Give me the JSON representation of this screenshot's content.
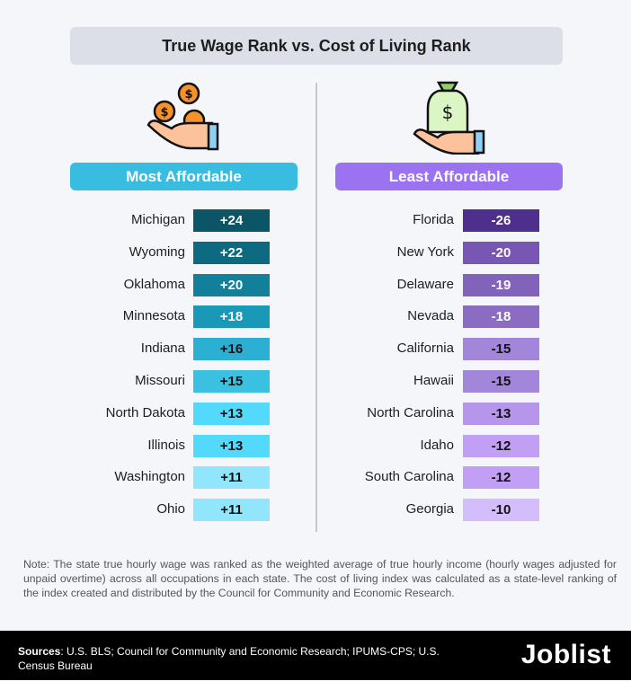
{
  "title": "True Wage Rank vs. Cost of Living Rank",
  "chart_data": {
    "type": "table",
    "title": "True Wage Rank vs. Cost of Living Rank",
    "groups": [
      {
        "label": "Most Affordable",
        "color": "#38bde0",
        "rows": [
          {
            "state": "Michigan",
            "value": "+24",
            "color": "#0b5566",
            "text": "#ffffff"
          },
          {
            "state": "Wyoming",
            "value": "+22",
            "color": "#0e6a80",
            "text": "#ffffff"
          },
          {
            "state": "Oklahoma",
            "value": "+20",
            "color": "#12809b",
            "text": "#ffffff"
          },
          {
            "state": "Minnesota",
            "value": "+18",
            "color": "#1a98b8",
            "text": "#ffffff"
          },
          {
            "state": "Indiana",
            "value": "+16",
            "color": "#2bb0d3",
            "text": "#111111"
          },
          {
            "state": "Missouri",
            "value": "+15",
            "color": "#3ac1e2",
            "text": "#111111"
          },
          {
            "state": "North Dakota",
            "value": "+13",
            "color": "#52d9fb",
            "text": "#111111"
          },
          {
            "state": "Illinois",
            "value": "+13",
            "color": "#52d9fb",
            "text": "#111111"
          },
          {
            "state": "Washington",
            "value": "+11",
            "color": "#91e6fb",
            "text": "#111111"
          },
          {
            "state": "Ohio",
            "value": "+11",
            "color": "#91e6fb",
            "text": "#111111"
          }
        ]
      },
      {
        "label": "Least Affordable",
        "color": "#9b72f0",
        "rows": [
          {
            "state": "Florida",
            "value": "-26",
            "color": "#4e2f8c",
            "text": "#ffffff"
          },
          {
            "state": "New York",
            "value": "-20",
            "color": "#7856b3",
            "text": "#ffffff"
          },
          {
            "state": "Delaware",
            "value": "-19",
            "color": "#8163bb",
            "text": "#ffffff"
          },
          {
            "state": "Nevada",
            "value": "-18",
            "color": "#8a6cc2",
            "text": "#ffffff"
          },
          {
            "state": "California",
            "value": "-15",
            "color": "#a286da",
            "text": "#111111"
          },
          {
            "state": "Hawaii",
            "value": "-15",
            "color": "#a286da",
            "text": "#111111"
          },
          {
            "state": "North Carolina",
            "value": "-13",
            "color": "#b596ea",
            "text": "#111111"
          },
          {
            "state": "Idaho",
            "value": "-12",
            "color": "#c09ff4",
            "text": "#111111"
          },
          {
            "state": "South Carolina",
            "value": "-12",
            "color": "#c09ff4",
            "text": "#111111"
          },
          {
            "state": "Georgia",
            "value": "-10",
            "color": "#d4bdfb",
            "text": "#111111"
          }
        ]
      }
    ]
  },
  "note": "Note: The state true hourly wage was ranked as the weighted average of true hourly income (hourly wages adjusted for unpaid overtime) across all occupations in each state. The cost of living index was calculated as a state-level ranking of the index created and distributed by the Council for Community and Economic Research.",
  "footer": {
    "sources_label": "Sources",
    "sources_text": ": U.S. BLS; Council for Community and Economic Research; IPUMS-CPS; U.S. Census Bureau",
    "logo": "Joblist"
  }
}
